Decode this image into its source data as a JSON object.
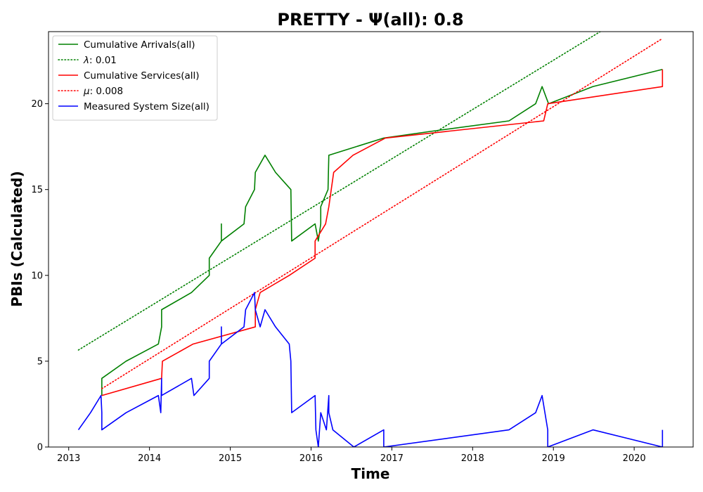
{
  "chart_data": {
    "type": "line",
    "title": "PRETTY -  Ψ(all): 0.8",
    "xlabel": "Time",
    "ylabel": "PBIs (Calculated)",
    "xlim": [
      2012.75,
      2020.73
    ],
    "ylim": [
      0,
      24.2
    ],
    "x_ticks": [
      2013,
      2014,
      2015,
      2016,
      2017,
      2018,
      2019,
      2020
    ],
    "y_ticks": [
      0,
      5,
      10,
      15,
      20
    ],
    "grid": false,
    "legend_position": "upper left",
    "series": [
      {
        "name": "Cumulative Arrivals(all)",
        "legend_prefix": "",
        "legend_value": "",
        "color": "#008000",
        "style": "solid",
        "x": [
          2013.41,
          2013.41,
          2013.71,
          2014.11,
          2014.15,
          2014.15,
          2014.52,
          2014.74,
          2014.74,
          2014.89,
          2014.89,
          2014.89,
          2015.17,
          2015.19,
          2015.3,
          2015.31,
          2015.43,
          2015.56,
          2015.75,
          2015.76,
          2016.05,
          2016.09,
          2016.12,
          2016.12,
          2016.21,
          2016.22,
          2016.9,
          2017.5,
          2018.45,
          2018.78,
          2018.86,
          2018.94,
          2019.49,
          2020.35,
          2020.35
        ],
        "y": [
          3,
          4,
          5,
          6,
          7,
          8,
          9,
          10,
          11,
          12,
          13,
          12,
          13,
          14,
          15,
          16,
          17,
          16,
          15,
          12,
          13,
          12,
          13,
          14,
          15,
          17,
          18,
          18.4,
          19,
          20,
          21,
          20,
          21,
          22,
          22
        ]
      },
      {
        "name": "",
        "legend_prefix": "λ",
        "legend_value": ": 0.01",
        "color": "#008000",
        "style": "dotted",
        "x": [
          2013.12,
          2019.58
        ],
        "y": [
          5.65,
          24.2
        ]
      },
      {
        "name": "Cumulative Services(all)",
        "legend_prefix": "",
        "legend_value": "",
        "color": "#ff0000",
        "style": "solid",
        "x": [
          2013.41,
          2014.15,
          2014.16,
          2014.54,
          2015.31,
          2015.31,
          2015.37,
          2015.73,
          2016.05,
          2016.05,
          2016.18,
          2016.22,
          2016.28,
          2016.52,
          2016.92,
          2018.88,
          2018.93,
          2020.35,
          2020.35
        ],
        "y": [
          3,
          4,
          5,
          6,
          7,
          8,
          9,
          10,
          11,
          12,
          13,
          14,
          16,
          17,
          18,
          19,
          20,
          21,
          22
        ]
      },
      {
        "name": "",
        "legend_prefix": "μ",
        "legend_value": ": 0.008",
        "color": "#ff0000",
        "style": "dotted",
        "x": [
          2013.41,
          2020.35
        ],
        "y": [
          3.4,
          23.8
        ]
      },
      {
        "name": "Measured System Size(all)",
        "legend_prefix": "",
        "legend_value": "",
        "color": "#0000ff",
        "style": "solid",
        "x": [
          2013.12,
          2013.27,
          2013.4,
          2013.41,
          2013.41,
          2013.71,
          2014.11,
          2014.14,
          2014.15,
          2014.15,
          2014.52,
          2014.55,
          2014.74,
          2014.74,
          2014.89,
          2014.89,
          2014.89,
          2015.17,
          2015.19,
          2015.3,
          2015.31,
          2015.37,
          2015.43,
          2015.56,
          2015.73,
          2015.75,
          2015.76,
          2016.05,
          2016.06,
          2016.09,
          2016.12,
          2016.19,
          2016.22,
          2016.22,
          2016.27,
          2016.53,
          2016.9,
          2016.9,
          2018.45,
          2018.78,
          2018.86,
          2018.93,
          2018.93,
          2019.49,
          2020.35,
          2020.35
        ],
        "y": [
          1,
          2,
          3,
          2,
          1,
          2,
          3,
          2,
          4,
          3,
          4,
          3,
          4,
          5,
          6,
          7,
          6,
          7,
          8,
          9,
          8,
          7,
          8,
          7,
          6,
          5,
          2,
          3,
          1,
          0,
          2,
          1,
          3,
          2,
          1,
          0,
          1,
          0,
          1,
          2,
          3,
          1,
          0,
          1,
          0,
          1
        ]
      }
    ]
  }
}
